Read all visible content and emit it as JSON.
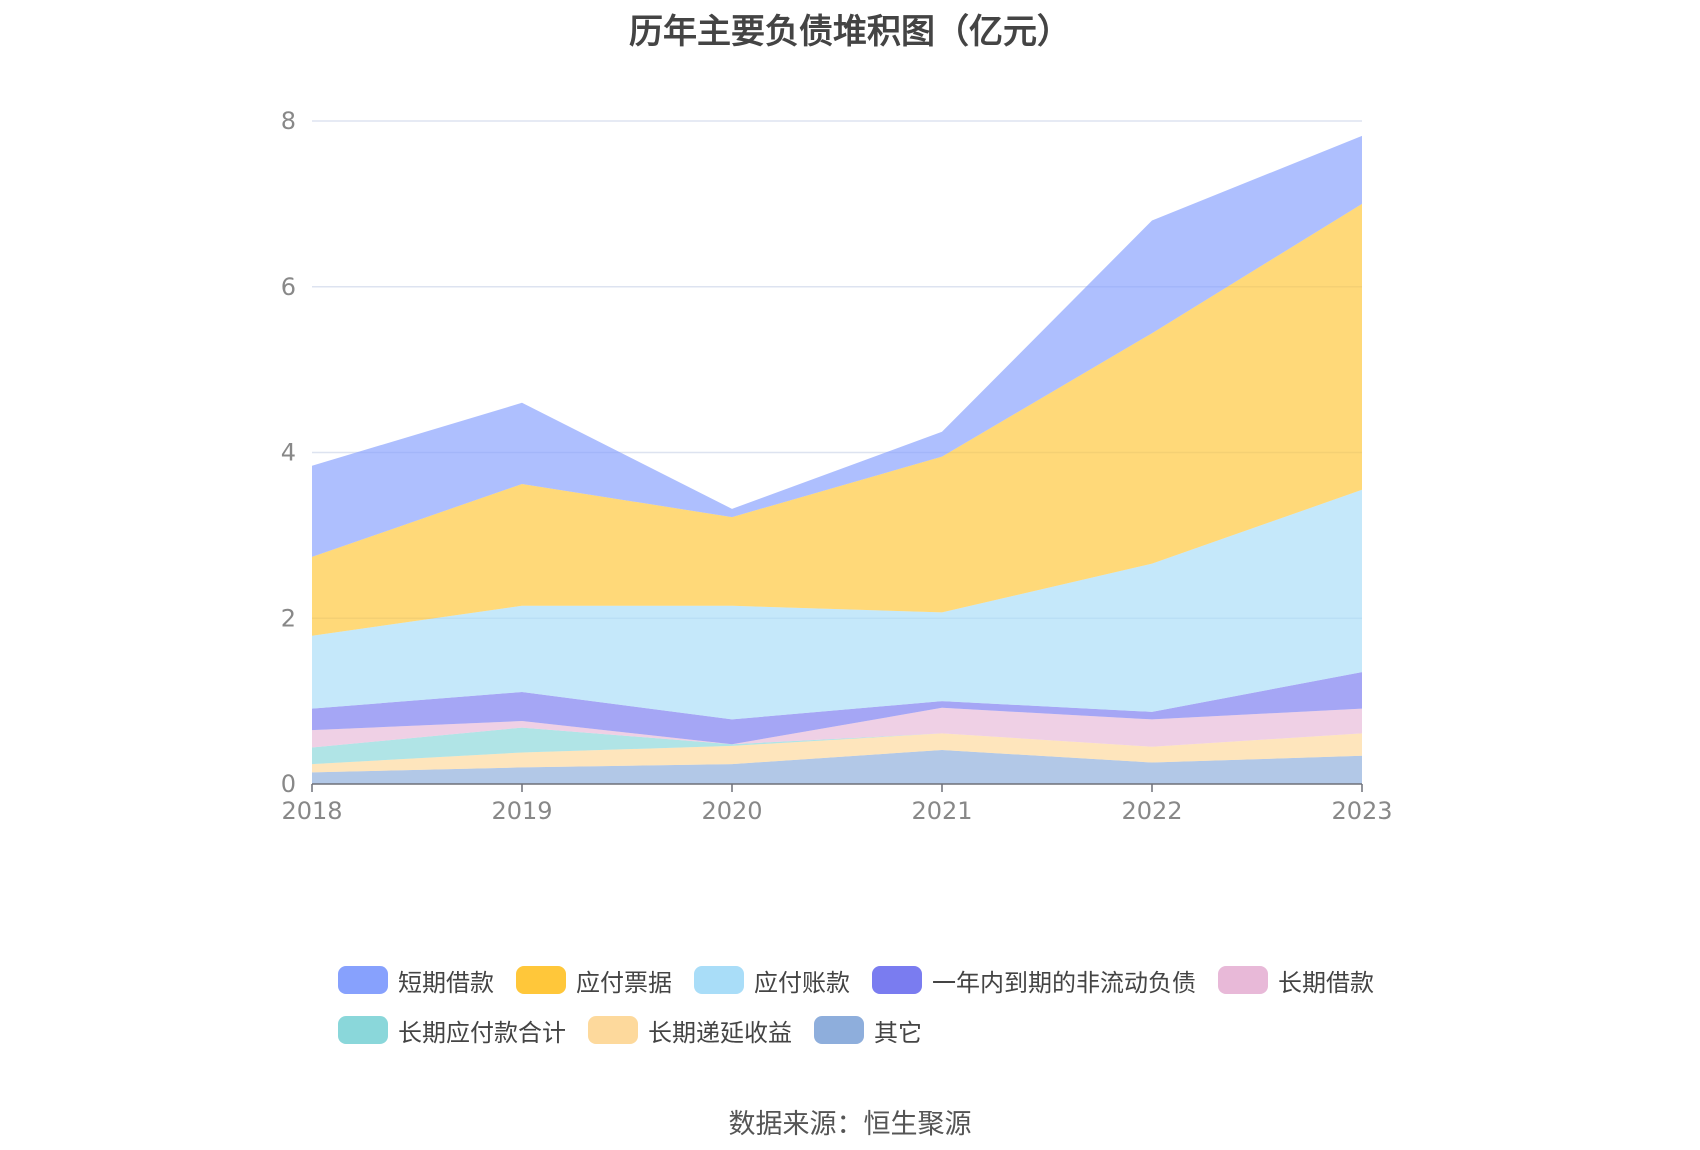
{
  "chart_data": {
    "type": "area",
    "stacked": true,
    "title": "历年主要负债堆积图（亿元）",
    "x": [
      "2018",
      "2019",
      "2020",
      "2021",
      "2022",
      "2023"
    ],
    "ylim": [
      0,
      8
    ],
    "yticks": [
      0,
      2,
      4,
      6,
      8
    ],
    "grid": true,
    "legend_position": "bottom",
    "series": [
      {
        "name": "其它",
        "color": "#8eaedc",
        "values": [
          0.14,
          0.2,
          0.24,
          0.41,
          0.26,
          0.34
        ]
      },
      {
        "name": "长期递延收益",
        "color": "#fdd99c",
        "values": [
          0.1,
          0.18,
          0.22,
          0.2,
          0.19,
          0.27
        ]
      },
      {
        "name": "长期应付款合计",
        "color": "#8ad7da",
        "values": [
          0.2,
          0.3,
          0.02,
          0.0,
          0.0,
          0.0
        ]
      },
      {
        "name": "长期借款",
        "color": "#e8b9d8",
        "values": [
          0.21,
          0.08,
          0.0,
          0.31,
          0.33,
          0.3
        ]
      },
      {
        "name": "一年内到期的非流动负债",
        "color": "#7a7cf0",
        "values": [
          0.26,
          0.35,
          0.3,
          0.08,
          0.09,
          0.44
        ]
      },
      {
        "name": "应付账款",
        "color": "#a9ddf8",
        "values": [
          0.88,
          1.04,
          1.37,
          1.07,
          1.79,
          2.2
        ]
      },
      {
        "name": "应付票据",
        "color": "#ffc73a",
        "values": [
          0.95,
          1.47,
          1.07,
          1.88,
          2.78,
          3.45
        ]
      },
      {
        "name": "短期借款",
        "color": "#87a1fd",
        "values": [
          1.1,
          0.98,
          0.1,
          0.3,
          1.36,
          0.82
        ]
      }
    ]
  },
  "legend": {
    "rows": [
      [
        {
          "name": "短期借款",
          "color": "#87a1fd"
        },
        {
          "name": "应付票据",
          "color": "#ffc73a"
        },
        {
          "name": "应付账款",
          "color": "#a9ddf8"
        },
        {
          "name": "一年内到期的非流动负债",
          "color": "#7a7cf0"
        },
        {
          "name": "长期借款",
          "color": "#e8b9d8"
        }
      ],
      [
        {
          "name": "长期应付款合计",
          "color": "#8ad7da"
        },
        {
          "name": "长期递延收益",
          "color": "#fdd99c"
        },
        {
          "name": "其它",
          "color": "#8eaedc"
        }
      ]
    ]
  },
  "source_note": "数据来源：恒生聚源"
}
